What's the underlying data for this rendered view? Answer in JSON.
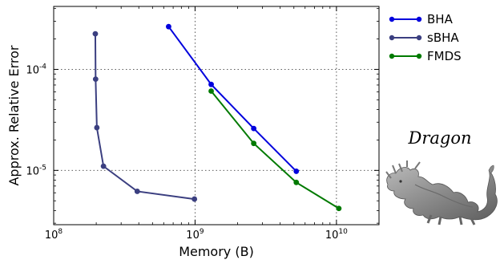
{
  "chart_data": {
    "type": "line",
    "xlabel": "Memory (B)",
    "ylabel": "Approx. Relative Error",
    "x_scale": "log",
    "y_scale": "log",
    "xlim": [
      100000000.0,
      20000000000.0
    ],
    "ylim": [
      2.9e-06,
      0.00042
    ],
    "x_ticks": [
      {
        "value": 100000000.0,
        "base": "10",
        "exp": "8"
      },
      {
        "value": 1000000000.0,
        "base": "10",
        "exp": "9"
      },
      {
        "value": 10000000000.0,
        "base": "10",
        "exp": "10"
      }
    ],
    "y_ticks": [
      {
        "value": 1e-05,
        "base": "10",
        "exp": "-5"
      },
      {
        "value": 0.0001,
        "base": "10",
        "exp": "-4"
      }
    ],
    "grid": "major, dotted",
    "legend_position": "outside-top-right",
    "series": [
      {
        "name": "BHA",
        "color": "#0000dd",
        "x": [
          650000000.0,
          1300000000.0,
          2600000000.0,
          5200000000.0
        ],
        "y": [
          0.000265,
          7.1e-05,
          2.6e-05,
          9.8e-06
        ]
      },
      {
        "name": "sBHA",
        "color": "#3b3f80",
        "x": [
          197000000.0,
          198000000.0,
          202000000.0,
          225000000.0,
          390000000.0,
          990000000.0
        ],
        "y": [
          0.000225,
          8e-05,
          2.65e-05,
          1.1e-05,
          6.2e-06,
          5.2e-06
        ]
      },
      {
        "name": "FMDS",
        "color": "#007a00",
        "x": [
          1300000000.0,
          2600000000.0,
          5200000000.0,
          10400000000.0
        ],
        "y": [
          6.1e-05,
          1.85e-05,
          7.6e-06,
          4.2e-06
        ]
      }
    ]
  },
  "figure": {
    "caption": "Dragon"
  }
}
